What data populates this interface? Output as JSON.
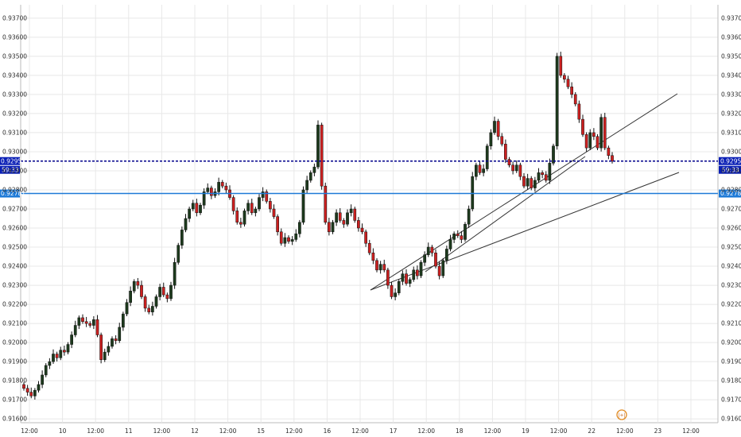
{
  "chart_data": {
    "type": "candlestick",
    "ylim": [
      0.9158,
      0.9377
    ],
    "y_ticks": [
      "0.93700",
      "0.93600",
      "0.93500",
      "0.93400",
      "0.93300",
      "0.93200",
      "0.93100",
      "0.93000",
      "0.92900",
      "0.92800",
      "0.92700",
      "0.92600",
      "0.92500",
      "0.92400",
      "0.92300",
      "0.92200",
      "0.92100",
      "0.92000",
      "0.91900",
      "0.91800",
      "0.91700",
      "0.91600"
    ],
    "x_ticks": [
      "12:00",
      "10",
      "12:00",
      "11",
      "12:00",
      "12",
      "12:00",
      "15",
      "12:00",
      "16",
      "12:00",
      "17",
      "12:00",
      "18",
      "12:00",
      "19",
      "12:00",
      "22",
      "12:00",
      "23",
      "12:00"
    ],
    "candles_close": [
      0.9176,
      0.9174,
      0.9172,
      0.9175,
      0.9178,
      0.9183,
      0.9188,
      0.919,
      0.9194,
      0.9192,
      0.9196,
      0.9195,
      0.9199,
      0.9204,
      0.9209,
      0.9213,
      0.9211,
      0.921,
      0.9209,
      0.9212,
      0.9204,
      0.9191,
      0.9195,
      0.9198,
      0.9202,
      0.9201,
      0.9208,
      0.9215,
      0.9221,
      0.9227,
      0.9232,
      0.923,
      0.9224,
      0.9218,
      0.9216,
      0.9219,
      0.9224,
      0.9229,
      0.9225,
      0.9223,
      0.923,
      0.9242,
      0.9251,
      0.9259,
      0.9265,
      0.927,
      0.9273,
      0.9268,
      0.9272,
      0.9279,
      0.9281,
      0.9277,
      0.9279,
      0.9284,
      0.9282,
      0.928,
      0.9276,
      0.9269,
      0.9263,
      0.9262,
      0.9269,
      0.9273,
      0.9268,
      0.927,
      0.9276,
      0.9279,
      0.9274,
      0.927,
      0.9266,
      0.9258,
      0.9252,
      0.9255,
      0.9253,
      0.9254,
      0.9257,
      0.9263,
      0.928,
      0.9285,
      0.9289,
      0.9292,
      0.9314,
      0.9282,
      0.9263,
      0.9258,
      0.9263,
      0.9268,
      0.9264,
      0.9262,
      0.9268,
      0.927,
      0.9264,
      0.926,
      0.9258,
      0.9252,
      0.9247,
      0.9243,
      0.9238,
      0.9241,
      0.9238,
      0.923,
      0.9224,
      0.9226,
      0.9232,
      0.9236,
      0.9231,
      0.9233,
      0.9238,
      0.9235,
      0.9242,
      0.9246,
      0.925,
      0.9247,
      0.924,
      0.9235,
      0.9243,
      0.9249,
      0.9254,
      0.9257,
      0.9256,
      0.9254,
      0.9262,
      0.927,
      0.9287,
      0.9293,
      0.9289,
      0.9291,
      0.9303,
      0.931,
      0.9316,
      0.9308,
      0.9304,
      0.9296,
      0.9293,
      0.929,
      0.9293,
      0.9287,
      0.9282,
      0.9286,
      0.9281,
      0.9285,
      0.9289,
      0.9288,
      0.9285,
      0.9294,
      0.9303,
      0.935,
      0.934,
      0.9338,
      0.9334,
      0.933,
      0.9325,
      0.9317,
      0.9309,
      0.9302,
      0.931,
      0.9308,
      0.9302,
      0.9318,
      0.9302,
      0.9298,
      0.9295
    ],
    "horizontal_lines": [
      {
        "label": "0.92951",
        "countdown": "59:33",
        "style": "dashed",
        "color": "#00008b"
      },
      {
        "label": "0.92781",
        "style": "solid",
        "color": "#1e7ad7"
      }
    ],
    "trendlines": 3,
    "grid": true
  },
  "colors": {
    "bull": "#1d3a1d",
    "bear": "#cc2020",
    "wick": "#111111",
    "grid": "#e8e8e8"
  },
  "icons": {
    "bottom_marker": "event-flag-icon"
  }
}
